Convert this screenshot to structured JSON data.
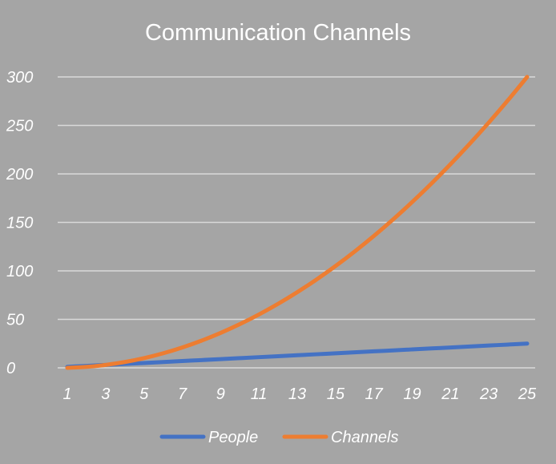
{
  "chart_data": {
    "type": "line",
    "title": "Communication Channels",
    "xlabel": "",
    "ylabel": "",
    "x": [
      1,
      2,
      3,
      4,
      5,
      6,
      7,
      8,
      9,
      10,
      11,
      12,
      13,
      14,
      15,
      16,
      17,
      18,
      19,
      20,
      21,
      22,
      23,
      24,
      25
    ],
    "x_tick_labels": [
      "1",
      "3",
      "5",
      "7",
      "9",
      "11",
      "13",
      "15",
      "17",
      "19",
      "21",
      "23",
      "25"
    ],
    "ylim": [
      0,
      300
    ],
    "y_tick_labels": [
      "0",
      "50",
      "100",
      "150",
      "200",
      "250",
      "300"
    ],
    "y_ticks": [
      0,
      50,
      100,
      150,
      200,
      250,
      300
    ],
    "grid": true,
    "legend_position": "bottom",
    "series": [
      {
        "name": "People",
        "color": "#4472c4",
        "values": [
          1,
          2,
          3,
          4,
          5,
          6,
          7,
          8,
          9,
          10,
          11,
          12,
          13,
          14,
          15,
          16,
          17,
          18,
          19,
          20,
          21,
          22,
          23,
          24,
          25
        ]
      },
      {
        "name": "Channels",
        "color": "#ed7d31",
        "values": [
          0,
          1,
          3,
          6,
          10,
          15,
          21,
          28,
          36,
          45,
          55,
          66,
          78,
          91,
          105,
          120,
          136,
          153,
          171,
          190,
          210,
          231,
          253,
          276,
          300
        ]
      }
    ]
  }
}
